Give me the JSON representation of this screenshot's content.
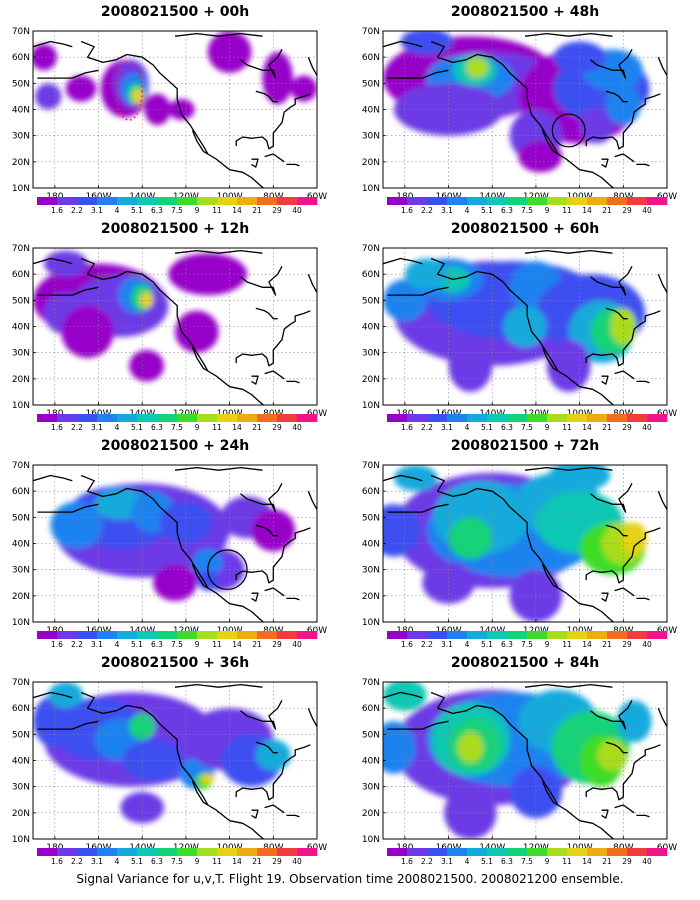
{
  "colorbar": {
    "labels": [
      "1.6",
      "2.2",
      "3.1",
      "4",
      "5.1",
      "6.3",
      "7.5",
      "9",
      "11",
      "14",
      "21",
      "29",
      "40"
    ],
    "colors": [
      "#9600c8",
      "#6c3ae6",
      "#3c50f0",
      "#1e82f0",
      "#14aadc",
      "#10c8b4",
      "#14d278",
      "#3cdc28",
      "#aadc1e",
      "#e6d214",
      "#f0aa14",
      "#f06e1e",
      "#f03c3c",
      "#f0148c"
    ]
  },
  "axes": {
    "y_labels": [
      "70N",
      "60N",
      "50N",
      "40N",
      "30N",
      "20N",
      "10N"
    ],
    "x_labels": [
      "180",
      "160W",
      "140W",
      "120W",
      "100W",
      "80W",
      "60W"
    ]
  },
  "panels": [
    {
      "title": "2008021500 + 00h",
      "column": 0,
      "row": 0,
      "circle": false,
      "red_dots": true
    },
    {
      "title": "2008021500 + 48h",
      "column": 1,
      "row": 0,
      "circle": true,
      "red_dots": false
    },
    {
      "title": "2008021500 + 12h",
      "column": 0,
      "row": 1,
      "circle": false,
      "red_dots": false
    },
    {
      "title": "2008021500 + 60h",
      "column": 1,
      "row": 1,
      "circle": false,
      "red_dots": false
    },
    {
      "title": "2008021500 + 24h",
      "column": 0,
      "row": 2,
      "circle": true,
      "red_dots": false
    },
    {
      "title": "2008021500 + 72h",
      "column": 1,
      "row": 2,
      "circle": false,
      "red_dots": false
    },
    {
      "title": "2008021500 + 36h",
      "column": 0,
      "row": 3,
      "circle": false,
      "red_dots": false
    },
    {
      "title": "2008021500 + 84h",
      "column": 1,
      "row": 3,
      "circle": false,
      "red_dots": false
    }
  ],
  "footer": "Signal Variance for u,v,T. Flight 19. Observation time 2008021500. 2008021200 ensemble."
}
